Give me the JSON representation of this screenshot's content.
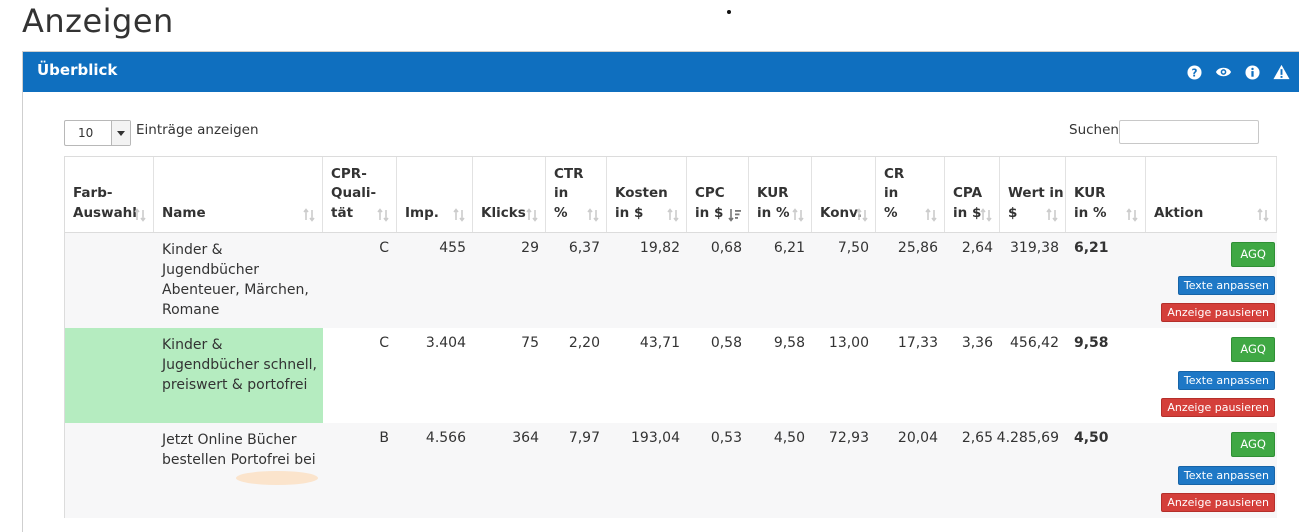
{
  "page": {
    "title": "Anzeigen"
  },
  "panel": {
    "title": "Überblick",
    "icons": [
      "question-icon",
      "eye-icon",
      "info-icon",
      "warning-icon"
    ]
  },
  "controls": {
    "length_value": "10",
    "length_label": "Einträge anzeigen",
    "search_label": "Suchen",
    "search_value": ""
  },
  "table": {
    "columns": [
      "Farb-\nAuswahl",
      "Name",
      "CPR-\nQuali-\ntät",
      "Imp.",
      "Klicks",
      "CTR\nin\n%",
      "Kosten\nin $",
      "CPC\nin $",
      "KUR\nin %",
      "Konv.",
      "CR\nin\n%",
      "CPA\nin $",
      "Wert in\n$",
      "KUR\nin %",
      "Aktion"
    ],
    "rows": [
      {
        "color": "",
        "name": "Kinder & Jugendbücher Abenteuer, Märchen, Romane",
        "cpr": "C",
        "imp": "455",
        "klicks": "29",
        "ctr": "6,37",
        "kosten": "19,82",
        "cpc": "0,68",
        "kur": "6,21",
        "konv": "7,50",
        "cr": "25,86",
        "cpa": "2,64",
        "wert": "319,38",
        "kur2": "6,21"
      },
      {
        "color": "#b5ecc0",
        "name": "Kinder & Jugendbücher schnell, preiswert & portofrei",
        "cpr": "C",
        "imp": "3.404",
        "klicks": "75",
        "ctr": "2,20",
        "kosten": "43,71",
        "cpc": "0,58",
        "kur": "9,58",
        "konv": "13,00",
        "cr": "17,33",
        "cpa": "3,36",
        "wert": "456,42",
        "kur2": "9,58"
      },
      {
        "color": "",
        "name": "Jetzt Online Bücher bestellen Portofrei bei",
        "cpr": "B",
        "imp": "4.566",
        "klicks": "364",
        "ctr": "7,97",
        "kosten": "193,04",
        "cpc": "0,53",
        "kur": "4,50",
        "konv": "72,93",
        "cr": "20,04",
        "cpa": "2,65",
        "wert": "4.285,69",
        "kur2": "4,50"
      }
    ],
    "actions": {
      "agq": "AGQ",
      "edit": "Texte anpassen",
      "pause": "Anzeige pausieren"
    }
  },
  "colors": {
    "header_blue": "#0f6fbf",
    "green": "#3fa844",
    "blue": "#1e78c6",
    "red": "#d43f3a",
    "swatch_green": "#b5ecc0"
  }
}
